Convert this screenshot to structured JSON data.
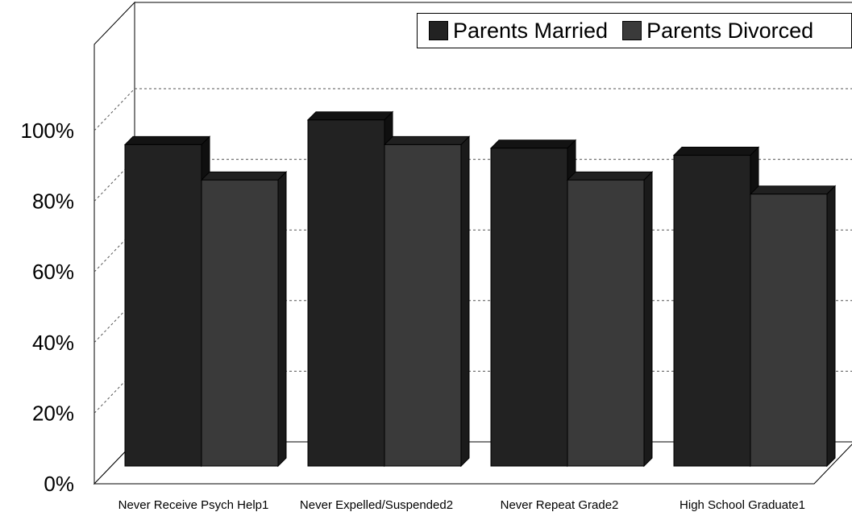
{
  "chart_data": {
    "type": "bar",
    "categories": [
      "Never Receive Psych Help1",
      "Never Expelled/Suspended2",
      "Never Repeat Grade2",
      "High School Graduate1"
    ],
    "series": [
      {
        "name": "Parents Married",
        "values": [
          91,
          98,
          90,
          88
        ],
        "color": "#222222"
      },
      {
        "name": "Parents Divorced",
        "values": [
          81,
          91,
          81,
          77
        ],
        "color": "#3a3a3a"
      }
    ],
    "yticks": [
      "0%",
      "20%",
      "40%",
      "60%",
      "80%",
      "100%"
    ],
    "ylim": [
      0,
      100
    ],
    "grid": true,
    "legend_position": "top-right",
    "three_d": true
  }
}
